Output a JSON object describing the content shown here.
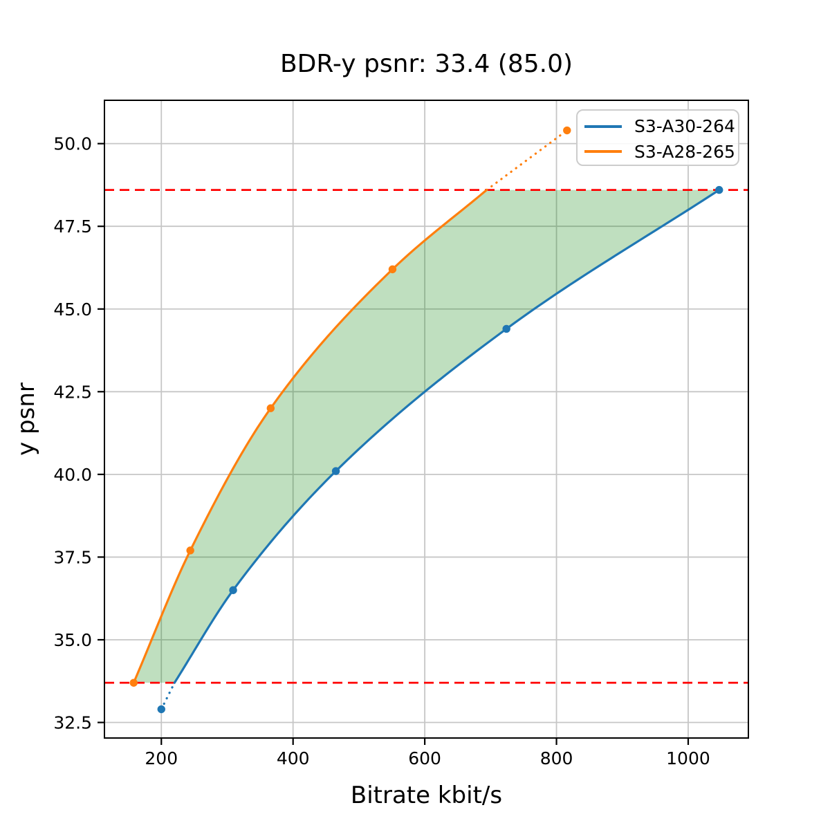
{
  "chart_data": {
    "type": "line",
    "title": "BDR-y psnr: 33.4 (85.0)",
    "xlabel": "Bitrate kbit/s",
    "ylabel": "y psnr",
    "xlim": [
      113.6,
      1091.4
    ],
    "ylim": [
      32.03,
      51.31
    ],
    "x_ticks": [
      200,
      400,
      600,
      800,
      1000
    ],
    "y_ticks": [
      32.5,
      35.0,
      37.5,
      40.0,
      42.5,
      45.0,
      47.5,
      50.0
    ],
    "grid": true,
    "grid_color": "#c6c6c6",
    "legend": {
      "position": "upper right",
      "entries": [
        "S3-A30-264",
        "S3-A28-265"
      ]
    },
    "series": [
      {
        "name": "S3-A30-264",
        "color": "#1f77b4",
        "points": [
          [
            200,
            32.9
          ],
          [
            309,
            36.5
          ],
          [
            465,
            40.1
          ],
          [
            724,
            44.4
          ],
          [
            1047,
            48.6
          ]
        ],
        "solid_curve": [
          [
            220,
            33.7
          ],
          [
            309,
            36.5
          ],
          [
            465,
            40.1
          ],
          [
            724,
            44.4
          ],
          [
            1047,
            48.6
          ]
        ],
        "dotted_segment": [
          [
            200,
            32.9
          ],
          [
            220,
            33.7
          ]
        ]
      },
      {
        "name": "S3-A28-265",
        "color": "#ff7f0e",
        "points": [
          [
            158,
            33.7
          ],
          [
            244,
            37.7
          ],
          [
            366,
            42.0
          ],
          [
            551,
            46.2
          ],
          [
            816,
            50.4
          ]
        ],
        "solid_curve": [
          [
            158,
            33.7
          ],
          [
            244,
            37.7
          ],
          [
            366,
            42.0
          ],
          [
            551,
            46.2
          ],
          [
            694,
            48.6
          ]
        ],
        "dotted_segment": [
          [
            694,
            48.6
          ],
          [
            816,
            50.4
          ]
        ]
      }
    ],
    "hlines": {
      "values": [
        33.7,
        48.6
      ],
      "color": "#ff0000",
      "linestyle": "dashed"
    },
    "shaded_region": {
      "between": [
        "S3-A28-265",
        "S3-A30-264"
      ],
      "y_bounds": [
        33.7,
        48.6
      ],
      "color": "#008000",
      "opacity": 0.25
    }
  }
}
